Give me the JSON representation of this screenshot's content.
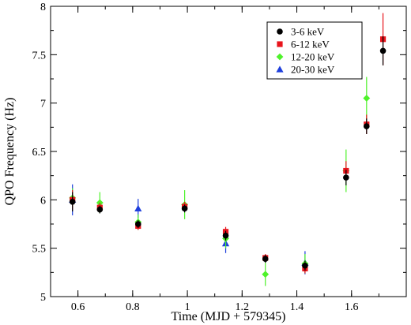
{
  "chart_data": {
    "type": "scatter",
    "title": "",
    "xlabel": "Time (MJD + 579345)",
    "ylabel": "QPO Frequency (Hz)",
    "xlim": [
      0.5,
      1.8
    ],
    "ylim": [
      5,
      8
    ],
    "x_ticks": [
      "0.6",
      "0.8",
      "1",
      "1.2",
      "1.4",
      "1.6"
    ],
    "y_ticks": [
      "5",
      "5.5",
      "6",
      "6.5",
      "7",
      "7.5",
      "8"
    ],
    "grid": false,
    "legend_position": "top-right",
    "series": [
      {
        "name": "3-6 keV",
        "marker": "circle",
        "color": "#000000",
        "points": [
          {
            "x": 0.58,
            "y": 5.98,
            "err": 0.1
          },
          {
            "x": 0.68,
            "y": 5.9,
            "err": 0.04
          },
          {
            "x": 0.82,
            "y": 5.75,
            "err": 0.04
          },
          {
            "x": 0.99,
            "y": 5.91,
            "err": 0.04
          },
          {
            "x": 1.14,
            "y": 5.63,
            "err": 0.05
          },
          {
            "x": 1.285,
            "y": 5.39,
            "err": 0.04
          },
          {
            "x": 1.43,
            "y": 5.32,
            "err": 0.05
          },
          {
            "x": 1.58,
            "y": 6.23,
            "err": 0.08
          },
          {
            "x": 1.655,
            "y": 6.76,
            "err": 0.08
          },
          {
            "x": 1.715,
            "y": 7.54,
            "err": 0.15
          }
        ]
      },
      {
        "name": "6-12 keV",
        "marker": "square",
        "color": "#e8141c",
        "points": [
          {
            "x": 0.58,
            "y": 6.0,
            "err": 0.1
          },
          {
            "x": 0.68,
            "y": 5.92,
            "err": 0.05
          },
          {
            "x": 0.82,
            "y": 5.73,
            "err": 0.04
          },
          {
            "x": 0.99,
            "y": 5.93,
            "err": 0.05
          },
          {
            "x": 1.14,
            "y": 5.67,
            "err": 0.05
          },
          {
            "x": 1.285,
            "y": 5.4,
            "err": 0.04
          },
          {
            "x": 1.43,
            "y": 5.29,
            "err": 0.05
          },
          {
            "x": 1.58,
            "y": 6.3,
            "err": 0.1
          },
          {
            "x": 1.655,
            "y": 6.78,
            "err": 0.1
          },
          {
            "x": 1.715,
            "y": 7.66,
            "err": 0.27
          }
        ]
      },
      {
        "name": "12-20 keV",
        "marker": "diamond",
        "color": "#4ef22a",
        "points": [
          {
            "x": 0.58,
            "y": 6.02,
            "err": 0.1
          },
          {
            "x": 0.68,
            "y": 5.97,
            "err": 0.11
          },
          {
            "x": 0.82,
            "y": 5.77,
            "err": 0.08
          },
          {
            "x": 0.99,
            "y": 5.95,
            "err": 0.15
          },
          {
            "x": 1.14,
            "y": 5.6,
            "err": 0.1
          },
          {
            "x": 1.285,
            "y": 5.23,
            "err": 0.12
          },
          {
            "x": 1.43,
            "y": 5.34,
            "err": 0.1
          },
          {
            "x": 1.58,
            "y": 6.3,
            "err": 0.22
          },
          {
            "x": 1.655,
            "y": 7.05,
            "err": 0.22
          },
          {
            "x": 1.715,
            "y": null,
            "err": null
          }
        ]
      },
      {
        "name": "20-30 keV",
        "marker": "triangle",
        "color": "#1e3fdc",
        "points": [
          {
            "x": 0.58,
            "y": 6.0,
            "err": 0.16
          },
          {
            "x": 0.82,
            "y": 5.91,
            "err": 0.1
          },
          {
            "x": 1.14,
            "y": 5.55,
            "err": 0.1
          },
          {
            "x": 1.43,
            "y": 5.35,
            "err": 0.12
          }
        ]
      }
    ]
  }
}
